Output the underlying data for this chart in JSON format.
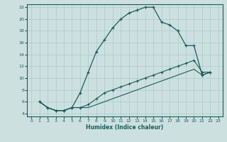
{
  "xlabel": "Humidex (Indice chaleur)",
  "bg_color": "#cde0e0",
  "grid_color": "#aacaca",
  "line_color": "#1a5c5c",
  "xlim": [
    -0.5,
    23.5
  ],
  "ylim": [
    3.5,
    22.5
  ],
  "xticks": [
    0,
    1,
    2,
    3,
    4,
    5,
    6,
    7,
    8,
    9,
    10,
    11,
    12,
    13,
    14,
    15,
    16,
    17,
    18,
    19,
    20,
    21,
    22,
    23
  ],
  "yticks": [
    4,
    6,
    8,
    10,
    12,
    14,
    16,
    18,
    20,
    22
  ],
  "line1_x": [
    1,
    2,
    3,
    4,
    5,
    6,
    7,
    8,
    9,
    10,
    11,
    12,
    13,
    14,
    15,
    16,
    17,
    18,
    19,
    20,
    21,
    22
  ],
  "line1_y": [
    6,
    5,
    4.5,
    4.5,
    5,
    7.5,
    11,
    14.5,
    16.5,
    18.5,
    20,
    21,
    21.5,
    22,
    22,
    19.5,
    19,
    18,
    15.5,
    15.5,
    10.5,
    11
  ],
  "line2_x": [
    1,
    2,
    3,
    4,
    5,
    6,
    7,
    8,
    9,
    10,
    11,
    12,
    13,
    14,
    15,
    16,
    17,
    18,
    19,
    20,
    21,
    22
  ],
  "line2_y": [
    6,
    5,
    4.5,
    4.5,
    5,
    5,
    5.5,
    6.5,
    7.5,
    8,
    8.5,
    9,
    9.5,
    10,
    10.5,
    11,
    11.5,
    12,
    12.5,
    13,
    11,
    11
  ],
  "line3_x": [
    1,
    2,
    3,
    4,
    5,
    6,
    7,
    8,
    9,
    10,
    11,
    12,
    13,
    14,
    15,
    16,
    17,
    18,
    19,
    20,
    21,
    22
  ],
  "line3_y": [
    6,
    5,
    4.5,
    4.5,
    5,
    5,
    5,
    5.5,
    6,
    6.5,
    7,
    7.5,
    8,
    8.5,
    9,
    9.5,
    10,
    10.5,
    11,
    11.5,
    10.5,
    11
  ]
}
